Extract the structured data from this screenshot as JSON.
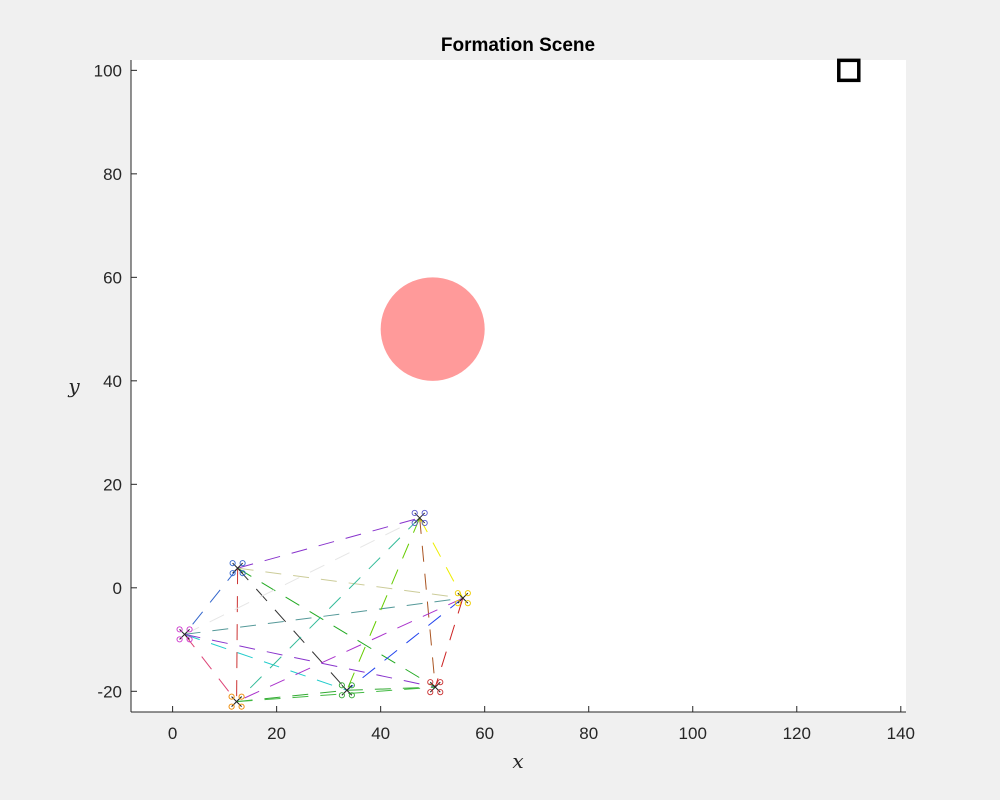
{
  "chart_data": {
    "type": "scatter",
    "title": "Formation Scene",
    "xlabel": "x",
    "ylabel": "y",
    "xlim": [
      -8,
      141
    ],
    "ylim": [
      -24,
      102
    ],
    "xticks": [
      0,
      20,
      40,
      60,
      80,
      100,
      120,
      140
    ],
    "yticks": [
      -20,
      0,
      20,
      40,
      60,
      80,
      100
    ],
    "xtick_labels": [
      "0",
      "20",
      "40",
      "60",
      "80",
      "100",
      "120",
      "140"
    ],
    "ytick_labels": [
      "-20",
      "0",
      "20",
      "40",
      "60",
      "80",
      "100"
    ],
    "grid": false,
    "obstacle": {
      "center": [
        50,
        50
      ],
      "radius": 10,
      "color": "#ff9a9a"
    },
    "goal": {
      "x": 130,
      "y": 100,
      "marker": "square",
      "color": "#000000"
    },
    "agents": [
      {
        "x": 2.3,
        "y": -9.0,
        "color": "#cc33cc"
      },
      {
        "x": 12.5,
        "y": 3.8,
        "color": "#3366cc"
      },
      {
        "x": 12.3,
        "y": -22.0,
        "color": "#ee8800"
      },
      {
        "x": 33.5,
        "y": -19.8,
        "color": "#33aa33"
      },
      {
        "x": 47.5,
        "y": 13.5,
        "color": "#5555cc"
      },
      {
        "x": 55.8,
        "y": -2.0,
        "color": "#eecc00"
      },
      {
        "x": 50.5,
        "y": -19.2,
        "color": "#cc3333"
      }
    ],
    "links": [
      {
        "from": 1,
        "to": 4,
        "color": "#8833cc"
      },
      {
        "from": 1,
        "to": 0,
        "color": "#3366cc"
      },
      {
        "from": 1,
        "to": 2,
        "color": "#cc3333"
      },
      {
        "from": 1,
        "to": 5,
        "color": "#cccc99"
      },
      {
        "from": 1,
        "to": 3,
        "color": "#333333"
      },
      {
        "from": 1,
        "to": 6,
        "color": "#22aa22"
      },
      {
        "from": 0,
        "to": 4,
        "color": "#e6e6e6"
      },
      {
        "from": 0,
        "to": 5,
        "color": "#559999"
      },
      {
        "from": 0,
        "to": 2,
        "color": "#dd4477"
      },
      {
        "from": 0,
        "to": 3,
        "color": "#22cccc"
      },
      {
        "from": 0,
        "to": 6,
        "color": "#8833cc"
      },
      {
        "from": 4,
        "to": 5,
        "color": "#eeee00"
      },
      {
        "from": 4,
        "to": 6,
        "color": "#aa5522"
      },
      {
        "from": 4,
        "to": 3,
        "color": "#66cc00"
      },
      {
        "from": 4,
        "to": 2,
        "color": "#33bb99"
      },
      {
        "from": 5,
        "to": 6,
        "color": "#cc2222"
      },
      {
        "from": 5,
        "to": 3,
        "color": "#2244ee"
      },
      {
        "from": 5,
        "to": 2,
        "color": "#aa33cc"
      },
      {
        "from": 2,
        "to": 3,
        "color": "#33aa33"
      },
      {
        "from": 2,
        "to": 6,
        "color": "#44bb44"
      },
      {
        "from": 3,
        "to": 6,
        "color": "#33aa33"
      }
    ]
  }
}
